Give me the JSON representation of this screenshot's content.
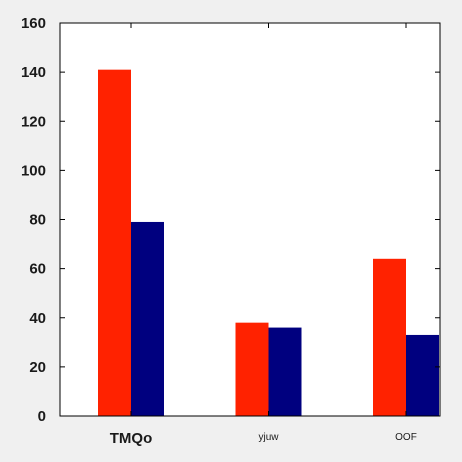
{
  "chart_data": {
    "type": "bar",
    "categories": [
      "TMQo",
      "yjuw",
      "OOF"
    ],
    "series": [
      {
        "values": [
          141,
          38,
          64
        ],
        "color": "#ff2200"
      },
      {
        "values": [
          79,
          36,
          33
        ],
        "color": "#00007f"
      }
    ],
    "ylim": [
      0,
      160
    ],
    "yticks": [
      0,
      20,
      40,
      60,
      80,
      100,
      120,
      140,
      160
    ],
    "title": "",
    "xlabel": "",
    "ylabel": "",
    "grid": false,
    "plot_background": "#ffffff"
  }
}
